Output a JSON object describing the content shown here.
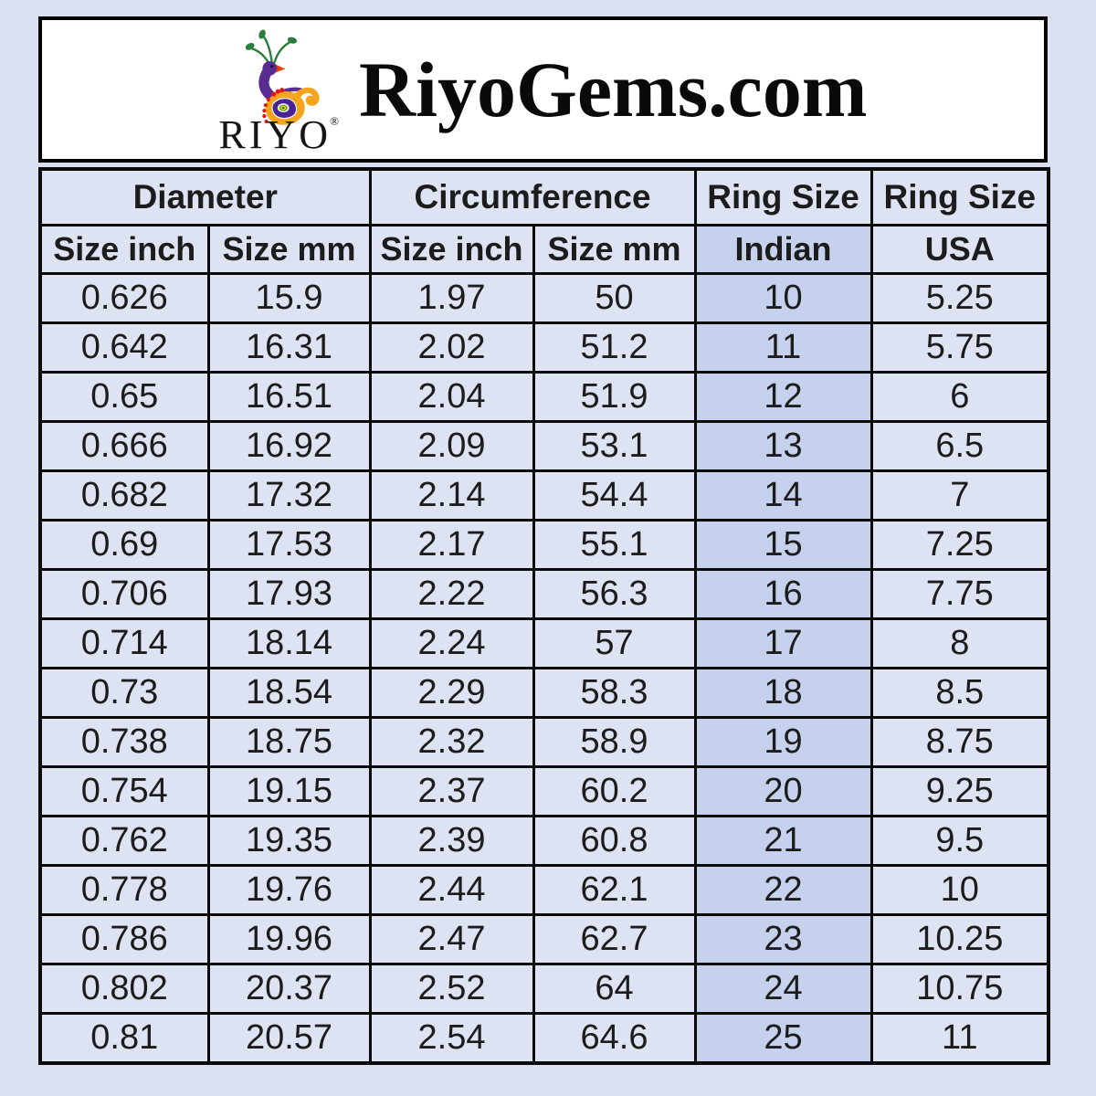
{
  "page": {
    "background_color": "#dadff2",
    "accent_colors": {
      "cell_bg": "#dee3f3",
      "indian_column_bg": "#c6d2ed",
      "border": "#0a0a0a",
      "logo_purple": "#5a2b93",
      "logo_orange": "#f7a41d",
      "logo_green": "#2a7d3a",
      "logo_red": "#e3170d"
    }
  },
  "header": {
    "logo": {
      "icon": "peacock-logo-icon",
      "brand": "RIYO",
      "registered": "®"
    },
    "title": "RiyoGems.com"
  },
  "chart_data": {
    "type": "table",
    "column_groups": [
      {
        "label": "Diameter",
        "span": 2
      },
      {
        "label": "Circumference",
        "span": 2
      },
      {
        "label": "Ring Size",
        "span": 1
      },
      {
        "label": "Ring Size",
        "span": 1
      }
    ],
    "columns": [
      "Size inch",
      "Size mm",
      "Size inch",
      "Size mm",
      "Indian",
      "USA"
    ],
    "highlighted_column": "Indian",
    "rows": [
      [
        "0.626",
        "15.9",
        "1.97",
        "50",
        "10",
        "5.25"
      ],
      [
        "0.642",
        "16.31",
        "2.02",
        "51.2",
        "11",
        "5.75"
      ],
      [
        "0.65",
        "16.51",
        "2.04",
        "51.9",
        "12",
        "6"
      ],
      [
        "0.666",
        "16.92",
        "2.09",
        "53.1",
        "13",
        "6.5"
      ],
      [
        "0.682",
        "17.32",
        "2.14",
        "54.4",
        "14",
        "7"
      ],
      [
        "0.69",
        "17.53",
        "2.17",
        "55.1",
        "15",
        "7.25"
      ],
      [
        "0.706",
        "17.93",
        "2.22",
        "56.3",
        "16",
        "7.75"
      ],
      [
        "0.714",
        "18.14",
        "2.24",
        "57",
        "17",
        "8"
      ],
      [
        "0.73",
        "18.54",
        "2.29",
        "58.3",
        "18",
        "8.5"
      ],
      [
        "0.738",
        "18.75",
        "2.32",
        "58.9",
        "19",
        "8.75"
      ],
      [
        "0.754",
        "19.15",
        "2.37",
        "60.2",
        "20",
        "9.25"
      ],
      [
        "0.762",
        "19.35",
        "2.39",
        "60.8",
        "21",
        "9.5"
      ],
      [
        "0.778",
        "19.76",
        "2.44",
        "62.1",
        "22",
        "10"
      ],
      [
        "0.786",
        "19.96",
        "2.47",
        "62.7",
        "23",
        "10.25"
      ],
      [
        "0.802",
        "20.37",
        "2.52",
        "64",
        "24",
        "10.75"
      ],
      [
        "0.81",
        "20.57",
        "2.54",
        "64.6",
        "25",
        "11"
      ]
    ]
  }
}
